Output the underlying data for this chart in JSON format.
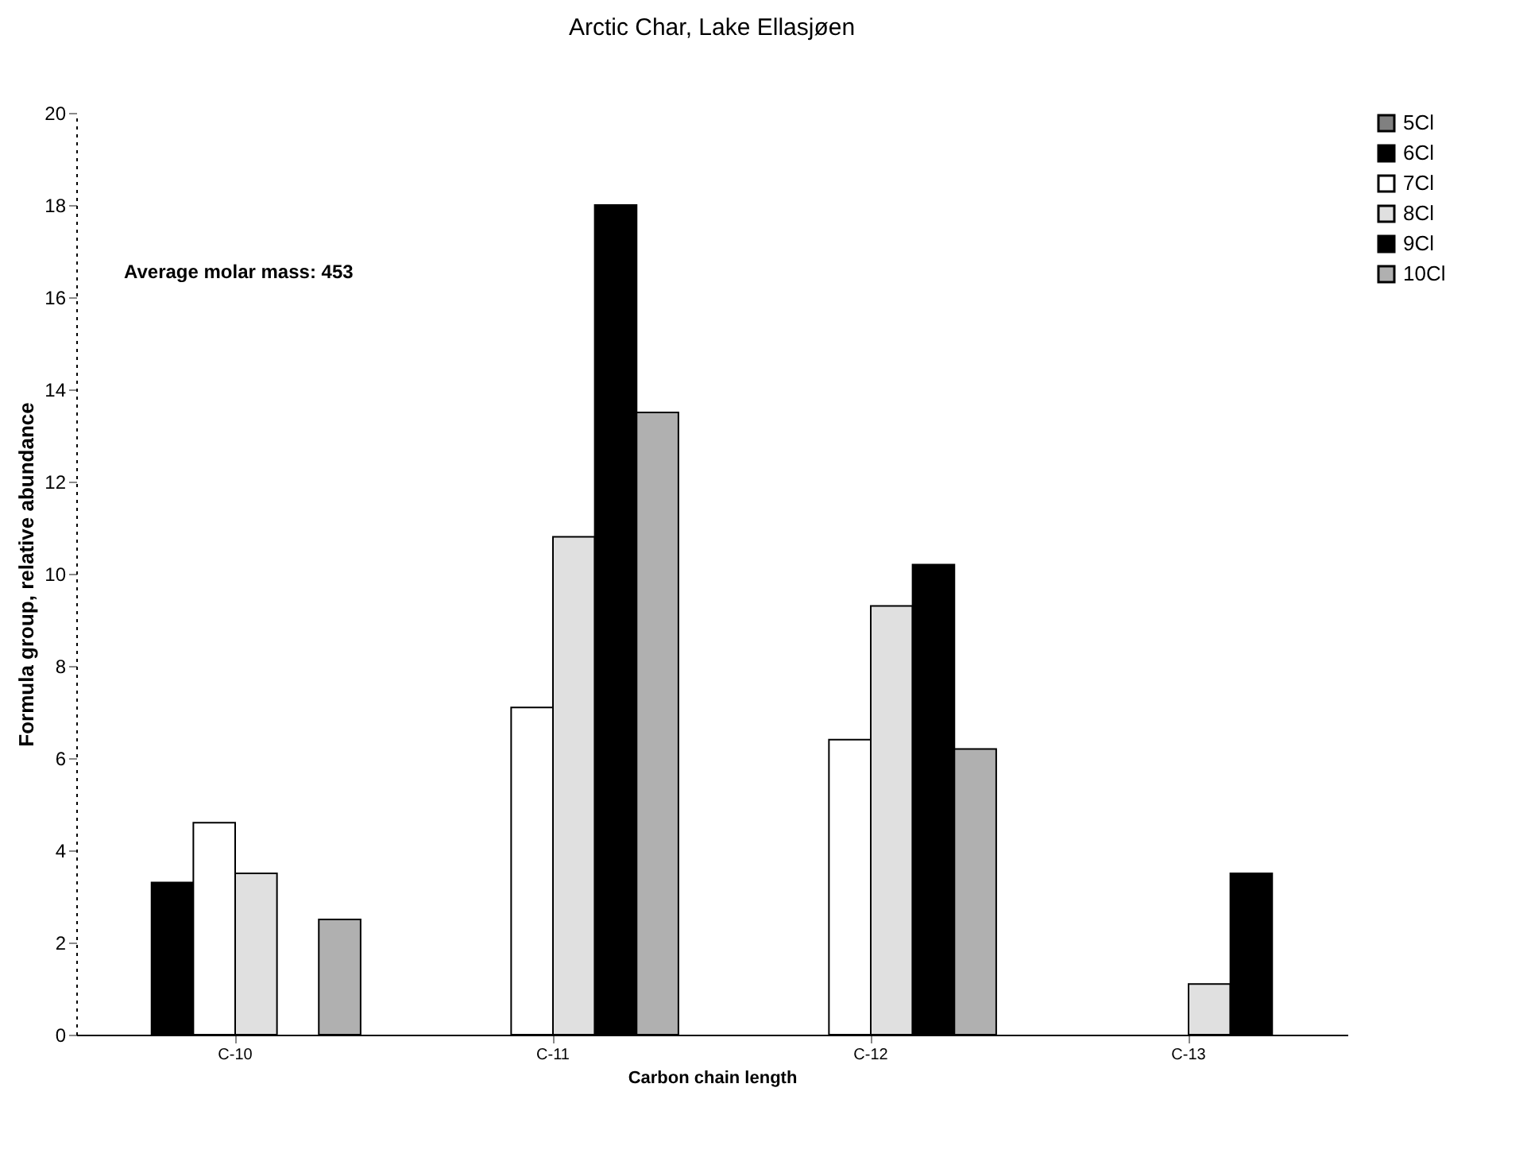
{
  "chart_data": {
    "type": "bar",
    "title": "Arctic Char, Lake Ellasjøen",
    "xlabel": "Carbon chain length",
    "ylabel": "Formula group, relative abundance",
    "categories": [
      "C-10",
      "C-11",
      "C-12",
      "C-13"
    ],
    "series": [
      {
        "name": "5Cl",
        "color": "#808080",
        "values": [
          null,
          null,
          null,
          null
        ]
      },
      {
        "name": "6Cl",
        "color": "#000000",
        "values": [
          3.3,
          null,
          null,
          null
        ]
      },
      {
        "name": "7Cl",
        "color": "#ffffff",
        "values": [
          4.6,
          7.1,
          6.4,
          null
        ]
      },
      {
        "name": "8Cl",
        "color": "#e0e0e0",
        "values": [
          3.5,
          10.8,
          9.3,
          1.1
        ]
      },
      {
        "name": "9Cl",
        "color": "#000000",
        "values": [
          null,
          18,
          10.2,
          3.5
        ]
      },
      {
        "name": "10Cl",
        "color": "#b0b0b0",
        "values": [
          2.5,
          13.5,
          6.2,
          null
        ]
      }
    ],
    "ylim": [
      0,
      20
    ],
    "yticks": [
      0,
      2,
      4,
      6,
      8,
      10,
      12,
      14,
      16,
      18,
      20
    ],
    "grid": false,
    "legend": "right",
    "annotations": [
      "Average molar mass:  453"
    ]
  }
}
